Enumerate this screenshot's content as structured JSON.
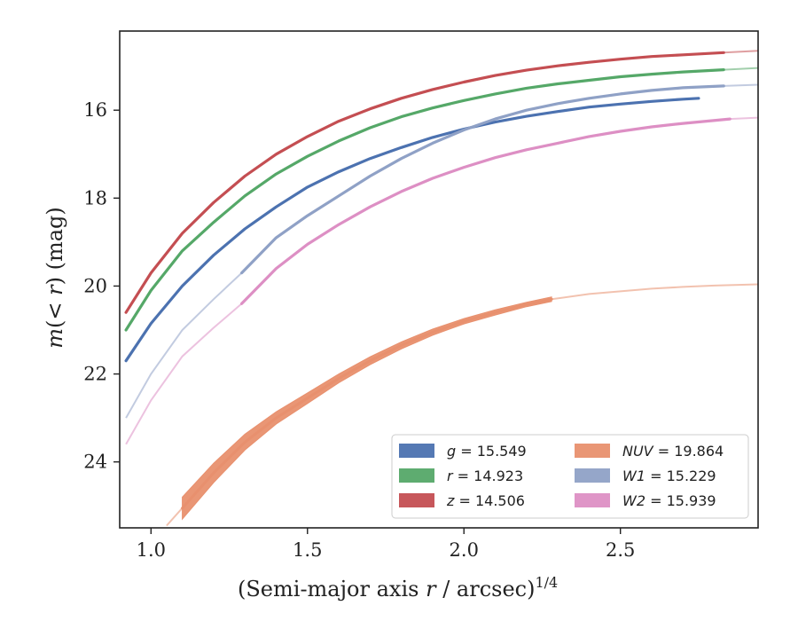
{
  "chart_data": {
    "type": "line",
    "title": "",
    "xlabel_main": "(Semi-major axis ",
    "xlabel_var": "r",
    "xlabel_unit": " / arcsec)",
    "xlabel_exp": "1/4",
    "ylabel_main": "m",
    "ylabel_paren_open": "(< ",
    "ylabel_var": "r",
    "ylabel_paren_close": ") (mag)",
    "xlim": [
      0.9,
      2.94
    ],
    "ylim": [
      25.5,
      14.2
    ],
    "y_inverted": true,
    "xticks": [
      1.0,
      1.5,
      2.0,
      2.5
    ],
    "xtick_labels": [
      "1.0",
      "1.5",
      "2.0",
      "2.5"
    ],
    "yticks": [
      16,
      18,
      20,
      22,
      24
    ],
    "ytick_labels": [
      "16",
      "18",
      "20",
      "22",
      "24"
    ],
    "grid": false,
    "legend_position": "bottom-right",
    "series": [
      {
        "name_var": "g",
        "name_value": " = 15.549",
        "color": "#4c72b0",
        "x": [
          0.92,
          1.0,
          1.1,
          1.2,
          1.3,
          1.4,
          1.5,
          1.6,
          1.7,
          1.8,
          1.9,
          2.0,
          2.1,
          2.2,
          2.3,
          2.4,
          2.5,
          2.6,
          2.7,
          2.75
        ],
        "y": [
          21.7,
          20.85,
          20.0,
          19.3,
          18.7,
          18.2,
          17.75,
          17.4,
          17.1,
          16.85,
          16.62,
          16.43,
          16.27,
          16.14,
          16.03,
          15.93,
          15.86,
          15.8,
          15.75,
          15.73
        ],
        "ext_x": [],
        "ext_y": []
      },
      {
        "name_var": "r",
        "name_value": " = 14.923",
        "color": "#55a868",
        "x": [
          0.92,
          1.0,
          1.1,
          1.2,
          1.3,
          1.4,
          1.5,
          1.6,
          1.7,
          1.8,
          1.9,
          2.0,
          2.1,
          2.2,
          2.3,
          2.4,
          2.5,
          2.6,
          2.7,
          2.83
        ],
        "y": [
          21.0,
          20.1,
          19.2,
          18.55,
          17.95,
          17.45,
          17.05,
          16.7,
          16.4,
          16.15,
          15.95,
          15.78,
          15.63,
          15.5,
          15.4,
          15.32,
          15.24,
          15.18,
          15.13,
          15.08
        ],
        "ext_x": [
          2.83,
          2.94
        ],
        "ext_y": [
          15.08,
          15.04
        ]
      },
      {
        "name_var": "z",
        "name_value": " = 14.506",
        "color": "#c44e52",
        "x": [
          0.92,
          1.0,
          1.1,
          1.2,
          1.3,
          1.4,
          1.5,
          1.6,
          1.7,
          1.8,
          1.9,
          2.0,
          2.1,
          2.2,
          2.3,
          2.4,
          2.5,
          2.6,
          2.7,
          2.83
        ],
        "y": [
          20.6,
          19.7,
          18.8,
          18.1,
          17.5,
          17.0,
          16.6,
          16.25,
          15.97,
          15.73,
          15.53,
          15.36,
          15.21,
          15.09,
          14.99,
          14.91,
          14.84,
          14.78,
          14.74,
          14.69
        ],
        "ext_x": [
          2.83,
          2.94
        ],
        "ext_y": [
          14.69,
          14.65
        ]
      },
      {
        "name_var": "NUV",
        "name_value": " = 19.864",
        "color": "#e8906e",
        "x": [
          1.1,
          1.2,
          1.3,
          1.4,
          1.5,
          1.6,
          1.7,
          1.8,
          1.9,
          2.0,
          2.1,
          2.2,
          2.28
        ],
        "y": [
          25.05,
          24.25,
          23.55,
          23.0,
          22.55,
          22.1,
          21.7,
          21.35,
          21.05,
          20.8,
          20.6,
          20.42,
          20.3
        ],
        "band": [
          0.25,
          0.22,
          0.18,
          0.14,
          0.12,
          0.1,
          0.09,
          0.08,
          0.07,
          0.06,
          0.06,
          0.05,
          0.05
        ],
        "ext_x": [
          1.05,
          1.1,
          2.28,
          2.4,
          2.5,
          2.6,
          2.7,
          2.8,
          2.94
        ],
        "ext_y": [
          25.45,
          25.05,
          20.3,
          20.18,
          20.12,
          20.06,
          20.02,
          19.99,
          19.96
        ]
      },
      {
        "name_var": "W1",
        "name_value": " = 15.229",
        "color": "#8fa1c6",
        "x": [
          1.29,
          1.4,
          1.5,
          1.6,
          1.7,
          1.8,
          1.9,
          2.0,
          2.1,
          2.2,
          2.3,
          2.4,
          2.5,
          2.6,
          2.7,
          2.83
        ],
        "y": [
          19.7,
          18.9,
          18.4,
          17.95,
          17.5,
          17.1,
          16.75,
          16.45,
          16.2,
          16.0,
          15.85,
          15.73,
          15.63,
          15.55,
          15.49,
          15.45
        ],
        "ext_x": [
          0.92,
          1.0,
          1.1,
          1.2,
          1.29
        ],
        "ext_y": [
          23.0,
          22.0,
          21.0,
          20.3,
          19.7
        ],
        "ext2_x": [
          2.83,
          2.94
        ],
        "ext2_y": [
          15.45,
          15.42
        ]
      },
      {
        "name_var": "W2",
        "name_value": " = 15.939",
        "color": "#dd8fc4",
        "x": [
          1.29,
          1.4,
          1.5,
          1.6,
          1.7,
          1.8,
          1.9,
          2.0,
          2.1,
          2.2,
          2.3,
          2.4,
          2.5,
          2.6,
          2.7,
          2.85
        ],
        "y": [
          20.4,
          19.6,
          19.05,
          18.6,
          18.2,
          17.85,
          17.55,
          17.3,
          17.08,
          16.9,
          16.75,
          16.6,
          16.48,
          16.38,
          16.3,
          16.2
        ],
        "ext_x": [
          0.92,
          1.0,
          1.1,
          1.2,
          1.29
        ],
        "ext_y": [
          23.6,
          22.6,
          21.6,
          20.95,
          20.4
        ],
        "ext2_x": [
          2.85,
          2.94
        ],
        "ext2_y": [
          16.2,
          16.17
        ]
      }
    ]
  }
}
